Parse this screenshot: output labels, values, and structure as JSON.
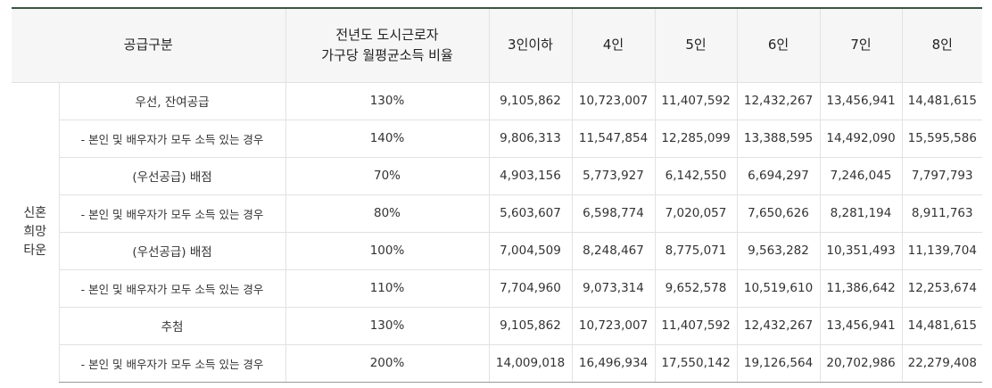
{
  "table": {
    "header": {
      "supply_type": "공급구분",
      "ratio_line1": "전년도 도시근로자",
      "ratio_line2": "가구당 월평균소득 비율",
      "household_columns": [
        "3인이하",
        "4인",
        "5인",
        "6인",
        "7인",
        "8인"
      ]
    },
    "group": {
      "line1": "신혼",
      "line2": "희망",
      "line3": "타운"
    },
    "rows": [
      {
        "label": "우선, 잔여공급",
        "ratio": "130%",
        "values": [
          "9,105,862",
          "10,723,007",
          "11,407,592",
          "12,432,267",
          "13,456,941",
          "14,481,615"
        ]
      },
      {
        "label": "- 본인 및 배우자가 모두 소득 있는 경우",
        "ratio": "140%",
        "values": [
          "9,806,313",
          "11,547,854",
          "12,285,099",
          "13,388,595",
          "14,492,090",
          "15,595,586"
        ]
      },
      {
        "label": "(우선공급) 배점",
        "ratio": "70%",
        "values": [
          "4,903,156",
          "5,773,927",
          "6,142,550",
          "6,694,297",
          "7,246,045",
          "7,797,793"
        ]
      },
      {
        "label": "- 본인 및 배우자가 모두 소득 있는 경우",
        "ratio": "80%",
        "values": [
          "5,603,607",
          "6,598,774",
          "7,020,057",
          "7,650,626",
          "8,281,194",
          "8,911,763"
        ]
      },
      {
        "label": "(우선공급) 배점",
        "ratio": "100%",
        "values": [
          "7,004,509",
          "8,248,467",
          "8,775,071",
          "9,563,282",
          "10,351,493",
          "11,139,704"
        ]
      },
      {
        "label": "- 본인 및 배우자가 모두 소득 있는 경우",
        "ratio": "110%",
        "values": [
          "7,704,960",
          "9,073,314",
          "9,652,578",
          "10,519,610",
          "11,386,642",
          "12,253,674"
        ]
      },
      {
        "label": "추첨",
        "ratio": "130%",
        "values": [
          "9,105,862",
          "10,723,007",
          "11,407,592",
          "12,432,267",
          "13,456,941",
          "14,481,615"
        ]
      },
      {
        "label": "- 본인 및 배우자가 모두 소득 있는 경우",
        "ratio": "200%",
        "values": [
          "14,009,018",
          "16,496,934",
          "17,550,142",
          "19,126,564",
          "20,702,986",
          "22,279,408"
        ]
      }
    ]
  }
}
